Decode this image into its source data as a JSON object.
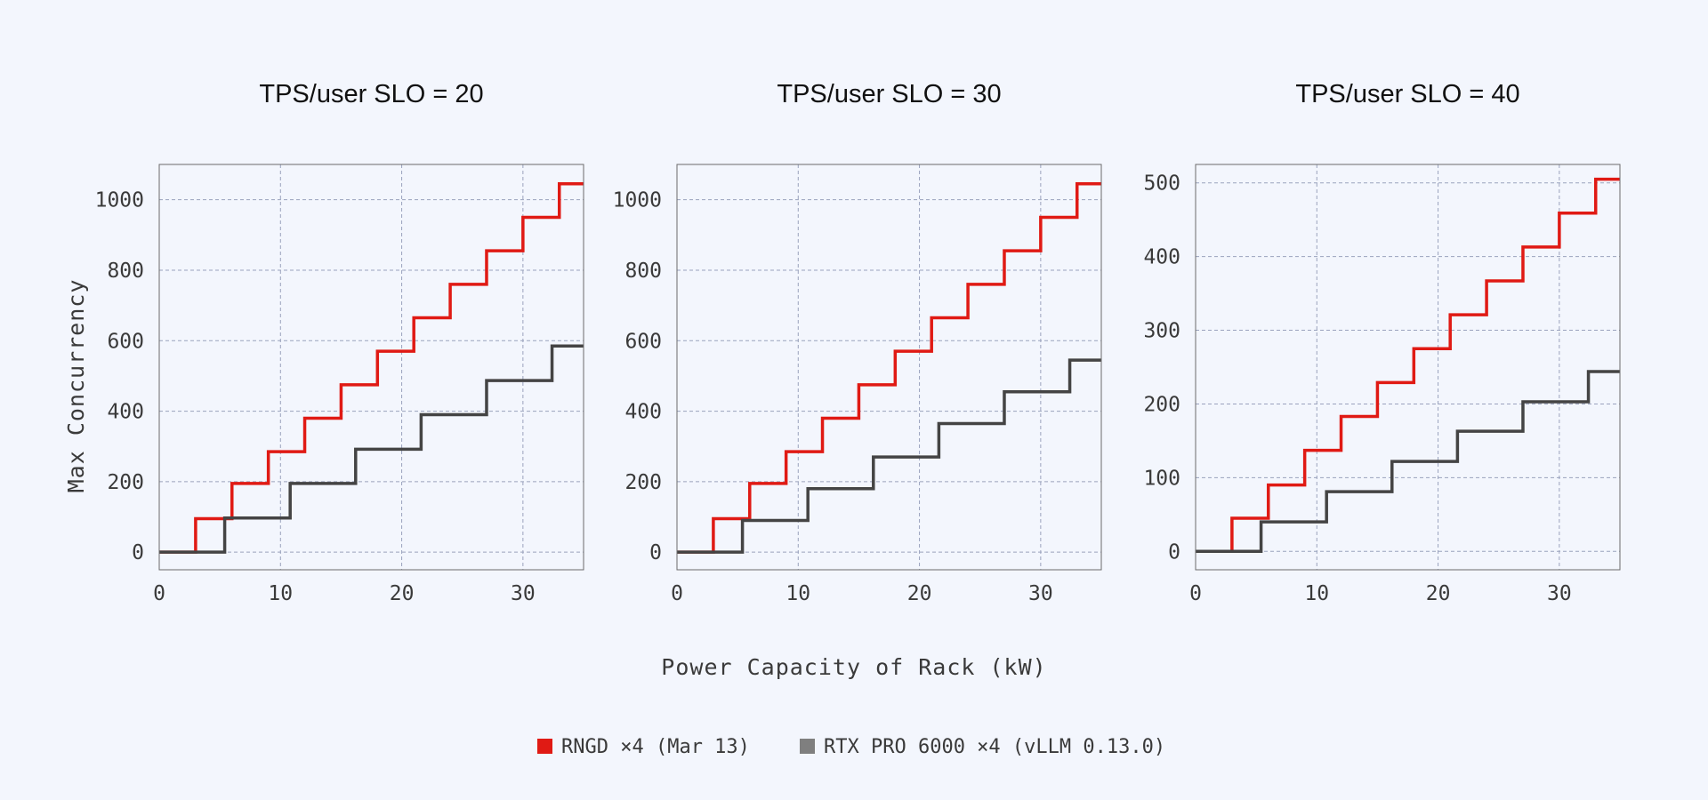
{
  "chart_data": {
    "type": "line",
    "step": "post",
    "xlabel": "Power Capacity of Rack (kW)",
    "ylabel": "Max Concurrency",
    "legend": [
      {
        "name": "RNGD ×4 (Mar 13)",
        "color": "#e01a14"
      },
      {
        "name": "RTX PRO 6000 ×4 (vLLM 0.13.0)",
        "color": "#7f7f7f"
      }
    ],
    "legend_placement": "bottom-center",
    "grid": true,
    "panels": [
      {
        "title": "TPS/user SLO = 20",
        "xlim": [
          0,
          35
        ],
        "ylim": [
          -50,
          1100
        ],
        "xticks": [
          0,
          10,
          20,
          30
        ],
        "yticks": [
          0,
          200,
          400,
          600,
          800,
          1000
        ],
        "series": [
          {
            "name": "RNGD ×4 (Mar 13)",
            "color": "#e01a14",
            "x": [
              0,
              3,
              6,
              9,
              12,
              15,
              18,
              21,
              24,
              27,
              30,
              33,
              35
            ],
            "y": [
              0,
              95,
              195,
              285,
              380,
              475,
              570,
              665,
              760,
              855,
              950,
              1045,
              1045
            ]
          },
          {
            "name": "RTX PRO 6000 ×4 (vLLM 0.13.0)",
            "color": "#444444",
            "x": [
              0,
              5.4,
              10.8,
              16.2,
              21.6,
              27,
              32.4,
              35
            ],
            "y": [
              0,
              97,
              195,
              292,
              390,
              487,
              585,
              585
            ]
          }
        ]
      },
      {
        "title": "TPS/user SLO = 30",
        "xlim": [
          0,
          35
        ],
        "ylim": [
          -50,
          1100
        ],
        "xticks": [
          0,
          10,
          20,
          30
        ],
        "yticks": [
          0,
          200,
          400,
          600,
          800,
          1000
        ],
        "series": [
          {
            "name": "RNGD ×4 (Mar 13)",
            "color": "#e01a14",
            "x": [
              0,
              3,
              6,
              9,
              12,
              15,
              18,
              21,
              24,
              27,
              30,
              33,
              35
            ],
            "y": [
              0,
              95,
              195,
              285,
              380,
              475,
              570,
              665,
              760,
              855,
              950,
              1045,
              1045
            ]
          },
          {
            "name": "RTX PRO 6000 ×4 (vLLM 0.13.0)",
            "color": "#444444",
            "x": [
              0,
              5.4,
              10.8,
              16.2,
              21.6,
              27,
              32.4,
              35
            ],
            "y": [
              0,
              90,
              180,
              270,
              365,
              455,
              545,
              545
            ]
          }
        ]
      },
      {
        "title": "TPS/user SLO = 40",
        "xlim": [
          0,
          35
        ],
        "ylim": [
          -25,
          525
        ],
        "xticks": [
          0,
          10,
          20,
          30
        ],
        "yticks": [
          0,
          100,
          200,
          300,
          400,
          500
        ],
        "series": [
          {
            "name": "RNGD ×4 (Mar 13)",
            "color": "#e01a14",
            "x": [
              0,
              3,
              6,
              9,
              12,
              15,
              18,
              21,
              24,
              27,
              30,
              33,
              35
            ],
            "y": [
              0,
              45,
              90,
              137,
              183,
              229,
              275,
              321,
              367,
              413,
              459,
              505,
              505
            ]
          },
          {
            "name": "RTX PRO 6000 ×4 (vLLM 0.13.0)",
            "color": "#444444",
            "x": [
              0,
              5.4,
              10.8,
              16.2,
              21.6,
              27,
              32.4,
              35
            ],
            "y": [
              0,
              40,
              81,
              122,
              163,
              203,
              244,
              244
            ]
          }
        ]
      }
    ]
  }
}
